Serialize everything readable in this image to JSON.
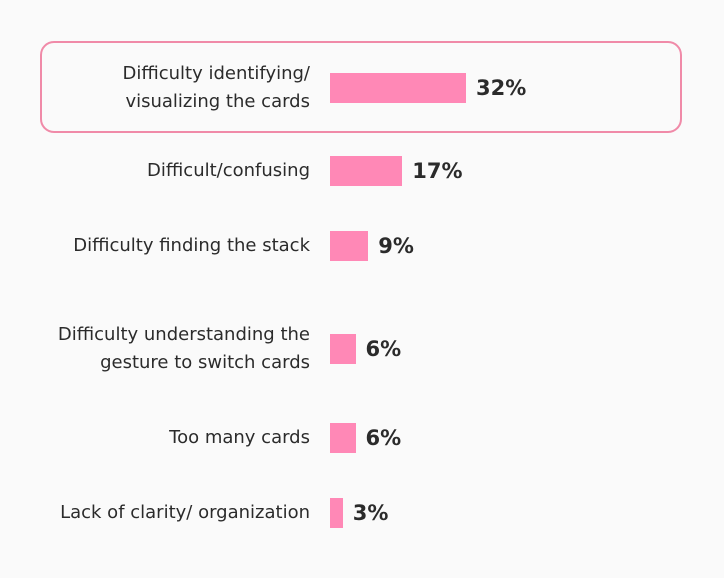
{
  "colors": {
    "bar": "#ff88b6",
    "highlight_border": "#f08aa8",
    "text": "#2b2b2b",
    "background": "#fafafa"
  },
  "chart_data": {
    "type": "bar",
    "orientation": "horizontal",
    "categories": [
      "Difficulty identifying/ visualizing the cards",
      "Difficult/confusing",
      "Difficulty finding the stack",
      "Difficulty understanding the gesture to switch cards",
      "Too many cards",
      "Lack of clarity/ organization"
    ],
    "values": [
      32,
      17,
      9,
      6,
      6,
      3
    ],
    "value_labels": [
      "32%",
      "17%",
      "9%",
      "6%",
      "6%",
      "3%"
    ],
    "highlighted_category": "Difficulty identifying/ visualizing the cards",
    "unit": "%",
    "xlim": [
      0,
      32
    ]
  }
}
